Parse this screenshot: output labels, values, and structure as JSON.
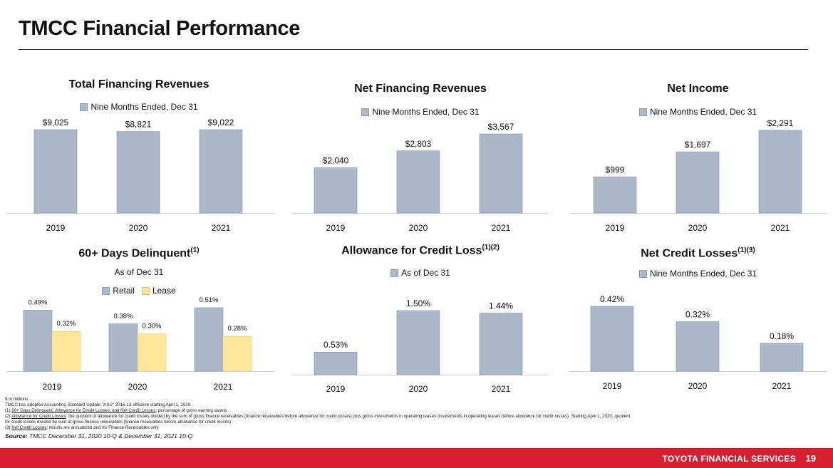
{
  "page": {
    "title": "TMCC Financial Performance",
    "footer_brand": "TOYOTA FINANCIAL SERVICES",
    "page_number": "19"
  },
  "colors": {
    "bar": "#adb9ca",
    "lease": "#ffe699",
    "footer": "#d71f2f"
  },
  "chart_data": [
    {
      "id": "tfr",
      "type": "bar",
      "title": "Total Financing Revenues",
      "subtitle": "",
      "series": [
        {
          "name": "Nine Months Ended, Dec 31",
          "values": [
            9025,
            8821,
            9022
          ],
          "labels": [
            "$9,025",
            "$8,821",
            "$9,022"
          ]
        }
      ],
      "categories": [
        "2019",
        "2020",
        "2021"
      ],
      "ylim": [
        0,
        9500
      ]
    },
    {
      "id": "nfr",
      "type": "bar",
      "title": "Net Financing Revenues",
      "subtitle": "",
      "series": [
        {
          "name": "Nine Months Ended, Dec 31",
          "values": [
            2040,
            2803,
            3567
          ],
          "labels": [
            "$2,040",
            "$2,803",
            "$3,567"
          ]
        }
      ],
      "categories": [
        "2019",
        "2020",
        "2021"
      ],
      "ylim": [
        0,
        4000
      ]
    },
    {
      "id": "ni",
      "type": "bar",
      "title": "Net Income",
      "subtitle": "",
      "series": [
        {
          "name": "Nine Months Ended, Dec 31",
          "values": [
            999,
            1697,
            2291
          ],
          "labels": [
            "$999",
            "$1,697",
            "$2,291"
          ]
        }
      ],
      "categories": [
        "2019",
        "2020",
        "2021"
      ],
      "ylim": [
        0,
        2500
      ]
    },
    {
      "id": "del",
      "type": "bar",
      "title": "60+ Days Delinquent",
      "title_sup": "(1)",
      "subtitle": "As of Dec 31",
      "series": [
        {
          "name": "Retail",
          "values": [
            0.49,
            0.38,
            0.51
          ],
          "labels": [
            "0.49%",
            "0.38%",
            "0.51%"
          ]
        },
        {
          "name": "Lease",
          "values": [
            0.32,
            0.3,
            0.28
          ],
          "labels": [
            "0.32%",
            "0.30%",
            "0.28%"
          ]
        }
      ],
      "categories": [
        "2019",
        "2020",
        "2021"
      ],
      "ylim": [
        0,
        0.6
      ]
    },
    {
      "id": "acl",
      "type": "bar",
      "title": "Allowance for Credit Loss",
      "title_sup": "(1)(2)",
      "subtitle": "",
      "series": [
        {
          "name": "As of Dec 31",
          "values": [
            0.53,
            1.5,
            1.44
          ],
          "labels": [
            "0.53%",
            "1.50%",
            "1.44%"
          ]
        }
      ],
      "categories": [
        "2019",
        "2020",
        "2021"
      ],
      "ylim": [
        0,
        1.6
      ]
    },
    {
      "id": "ncl",
      "type": "bar",
      "title": "Net Credit Losses",
      "title_sup": "(1)(3)",
      "subtitle": "",
      "series": [
        {
          "name": "Nine Months Ended, Dec 31",
          "values": [
            0.42,
            0.32,
            0.18
          ],
          "labels": [
            "0.42%",
            "0.32%",
            "0.18%"
          ]
        }
      ],
      "categories": [
        "2019",
        "2020",
        "2021"
      ],
      "ylim": [
        0,
        0.5
      ]
    }
  ],
  "notes": {
    "line1": "$ in millions",
    "line2": "TMCC has adopted Accounting Standard Update \"ASU\" 2016-13 effective starting April 1, 2020",
    "line3_prefix": "(1) ",
    "line3_u": "60+ Days Delinquent, Allowance for Credit Losses, and Net Credit Losses",
    "line3_rest": ": percentage of gross earning assets",
    "line4_prefix": "(2) ",
    "line4_u": "Allowance for Credit Losses",
    "line4_rest": ": the quotient of allowance for credit losses divided by the sum of gross finance receivables (finance receivables before allowance for credit losses) plus gross investments in operating leases (investments in operating leases before allowance for credit losses). Starting April 1, 2020, quotient",
    "line5": "for credit losses divided by sum of gross finance receivables (finance receivables before allowance for credit losses)",
    "line6_prefix": "(3) ",
    "line6_u": "Net Credit Losses",
    "line6_rest": ": results are annualized and for Finance Receivables only",
    "source_label": "Source:",
    "source_text": " TMCC December 31, 2020 10-Q & December 31, 2021 10-Q"
  }
}
